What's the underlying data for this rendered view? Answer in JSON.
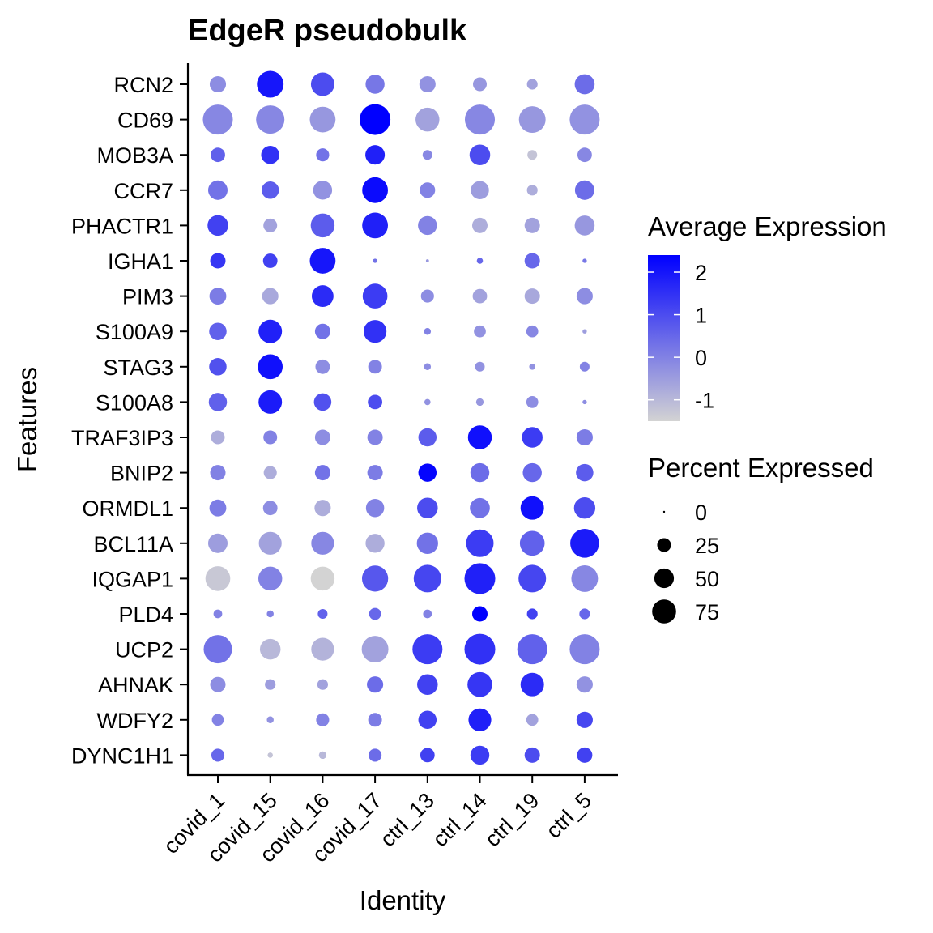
{
  "chart_data": {
    "type": "dotplot",
    "title": "EdgeR pseudobulk",
    "xlabel": "Identity",
    "ylabel": "Features",
    "identities": [
      "covid_1",
      "covid_15",
      "covid_16",
      "covid_17",
      "ctrl_13",
      "ctrl_14",
      "ctrl_19",
      "ctrl_5"
    ],
    "features": [
      "RCN2",
      "CD69",
      "MOB3A",
      "CCR7",
      "PHACTR1",
      "IGHA1",
      "PIM3",
      "S100A9",
      "STAG3",
      "S100A8",
      "TRAF3IP3",
      "BNIP2",
      "ORMDL1",
      "BCL11A",
      "IQGAP1",
      "PLD4",
      "UCP2",
      "AHNAK",
      "WDFY2",
      "DYNC1H1"
    ],
    "percent_expressed": [
      [
        28,
        75,
        58,
        38,
        28,
        20,
        12,
        42
      ],
      [
        95,
        85,
        70,
        100,
        60,
        95,
        75,
        95
      ],
      [
        22,
        35,
        18,
        40,
        10,
        45,
        10,
        22
      ],
      [
        40,
        32,
        38,
        70,
        25,
        35,
        12,
        40
      ],
      [
        45,
        20,
        60,
        70,
        38,
        25,
        25,
        42
      ],
      [
        25,
        22,
        70,
        2,
        1,
        4,
        25,
        2
      ],
      [
        30,
        28,
        50,
        65,
        18,
        22,
        25,
        28
      ],
      [
        32,
        58,
        25,
        55,
        5,
        15,
        15,
        2
      ],
      [
        32,
        65,
        22,
        20,
        5,
        10,
        4,
        10
      ],
      [
        35,
        58,
        32,
        22,
        4,
        6,
        15,
        2
      ],
      [
        20,
        20,
        25,
        25,
        35,
        60,
        45,
        28
      ],
      [
        25,
        18,
        25,
        25,
        35,
        38,
        38,
        32
      ],
      [
        30,
        22,
        28,
        35,
        45,
        42,
        58,
        48
      ],
      [
        40,
        55,
        55,
        38,
        48,
        80,
        65,
        88
      ],
      [
        65,
        60,
        60,
        72,
        80,
        100,
        80,
        75
      ],
      [
        8,
        5,
        10,
        15,
        8,
        25,
        12,
        12
      ],
      [
        85,
        45,
        55,
        75,
        95,
        100,
        95,
        95
      ],
      [
        25,
        12,
        12,
        28,
        45,
        65,
        58,
        28
      ],
      [
        15,
        5,
        18,
        20,
        35,
        55,
        15,
        28
      ],
      [
        18,
        3,
        6,
        18,
        22,
        38,
        25,
        25
      ]
    ],
    "average_expression": [
      [
        -0.2,
        2.0,
        1.0,
        0.2,
        -0.3,
        -0.4,
        -0.6,
        0.4
      ],
      [
        -0.1,
        -0.1,
        -0.4,
        2.4,
        -0.6,
        -0.1,
        -0.4,
        -0.3
      ],
      [
        0.6,
        1.5,
        0.3,
        1.8,
        -0.1,
        1.0,
        -1.2,
        -0.1
      ],
      [
        0.3,
        0.7,
        -0.3,
        2.2,
        0.0,
        -0.5,
        -0.8,
        0.4
      ],
      [
        1.2,
        -0.6,
        0.7,
        1.8,
        0.0,
        -0.8,
        -0.6,
        -0.4
      ],
      [
        1.4,
        1.2,
        2.0,
        0.3,
        -0.4,
        0.5,
        0.5,
        0.2
      ],
      [
        0.1,
        -0.7,
        1.6,
        1.3,
        -0.2,
        -0.6,
        -0.7,
        -0.2
      ],
      [
        0.6,
        1.8,
        0.3,
        1.5,
        0.0,
        -0.3,
        -0.1,
        -0.5
      ],
      [
        0.9,
        2.1,
        -0.2,
        0.0,
        -0.2,
        -0.3,
        -0.3,
        0.0
      ],
      [
        0.6,
        1.9,
        0.9,
        1.0,
        -0.3,
        -0.4,
        -0.2,
        -0.2
      ],
      [
        -0.8,
        0.0,
        -0.2,
        0.0,
        0.7,
        2.1,
        1.3,
        0.1
      ],
      [
        0.0,
        -0.8,
        0.3,
        0.1,
        2.3,
        0.4,
        0.5,
        0.7
      ],
      [
        0.1,
        -0.2,
        -0.8,
        0.0,
        1.0,
        0.3,
        2.1,
        1.0
      ],
      [
        -0.5,
        -0.6,
        -0.1,
        -0.8,
        0.3,
        1.3,
        0.6,
        1.9
      ],
      [
        -1.3,
        0.0,
        -1.5,
        0.8,
        1.1,
        1.8,
        1.1,
        -0.1
      ],
      [
        0.0,
        0.0,
        0.6,
        0.5,
        0.0,
        2.4,
        1.2,
        0.5
      ],
      [
        0.3,
        -1.0,
        -0.9,
        -0.6,
        1.3,
        1.5,
        0.6,
        0.0
      ],
      [
        -0.2,
        -0.5,
        -0.6,
        0.4,
        1.2,
        1.4,
        1.6,
        -0.3
      ],
      [
        0.0,
        -0.3,
        0.0,
        0.1,
        1.2,
        1.8,
        -0.6,
        1.1
      ],
      [
        0.5,
        -1.2,
        -1.0,
        0.4,
        1.2,
        1.3,
        1.0,
        1.2
      ]
    ],
    "color_scale": {
      "low": "#D3D3D3",
      "high": "#0000FF",
      "domain": [
        -1.5,
        2.4
      ]
    },
    "legend_expression": {
      "title": "Average Expression",
      "ticks": [
        2,
        1,
        0,
        -1
      ]
    },
    "legend_percent": {
      "title": "Percent Expressed",
      "values": [
        0,
        25,
        50,
        75
      ]
    },
    "legend_placement": "right",
    "grid": false
  }
}
